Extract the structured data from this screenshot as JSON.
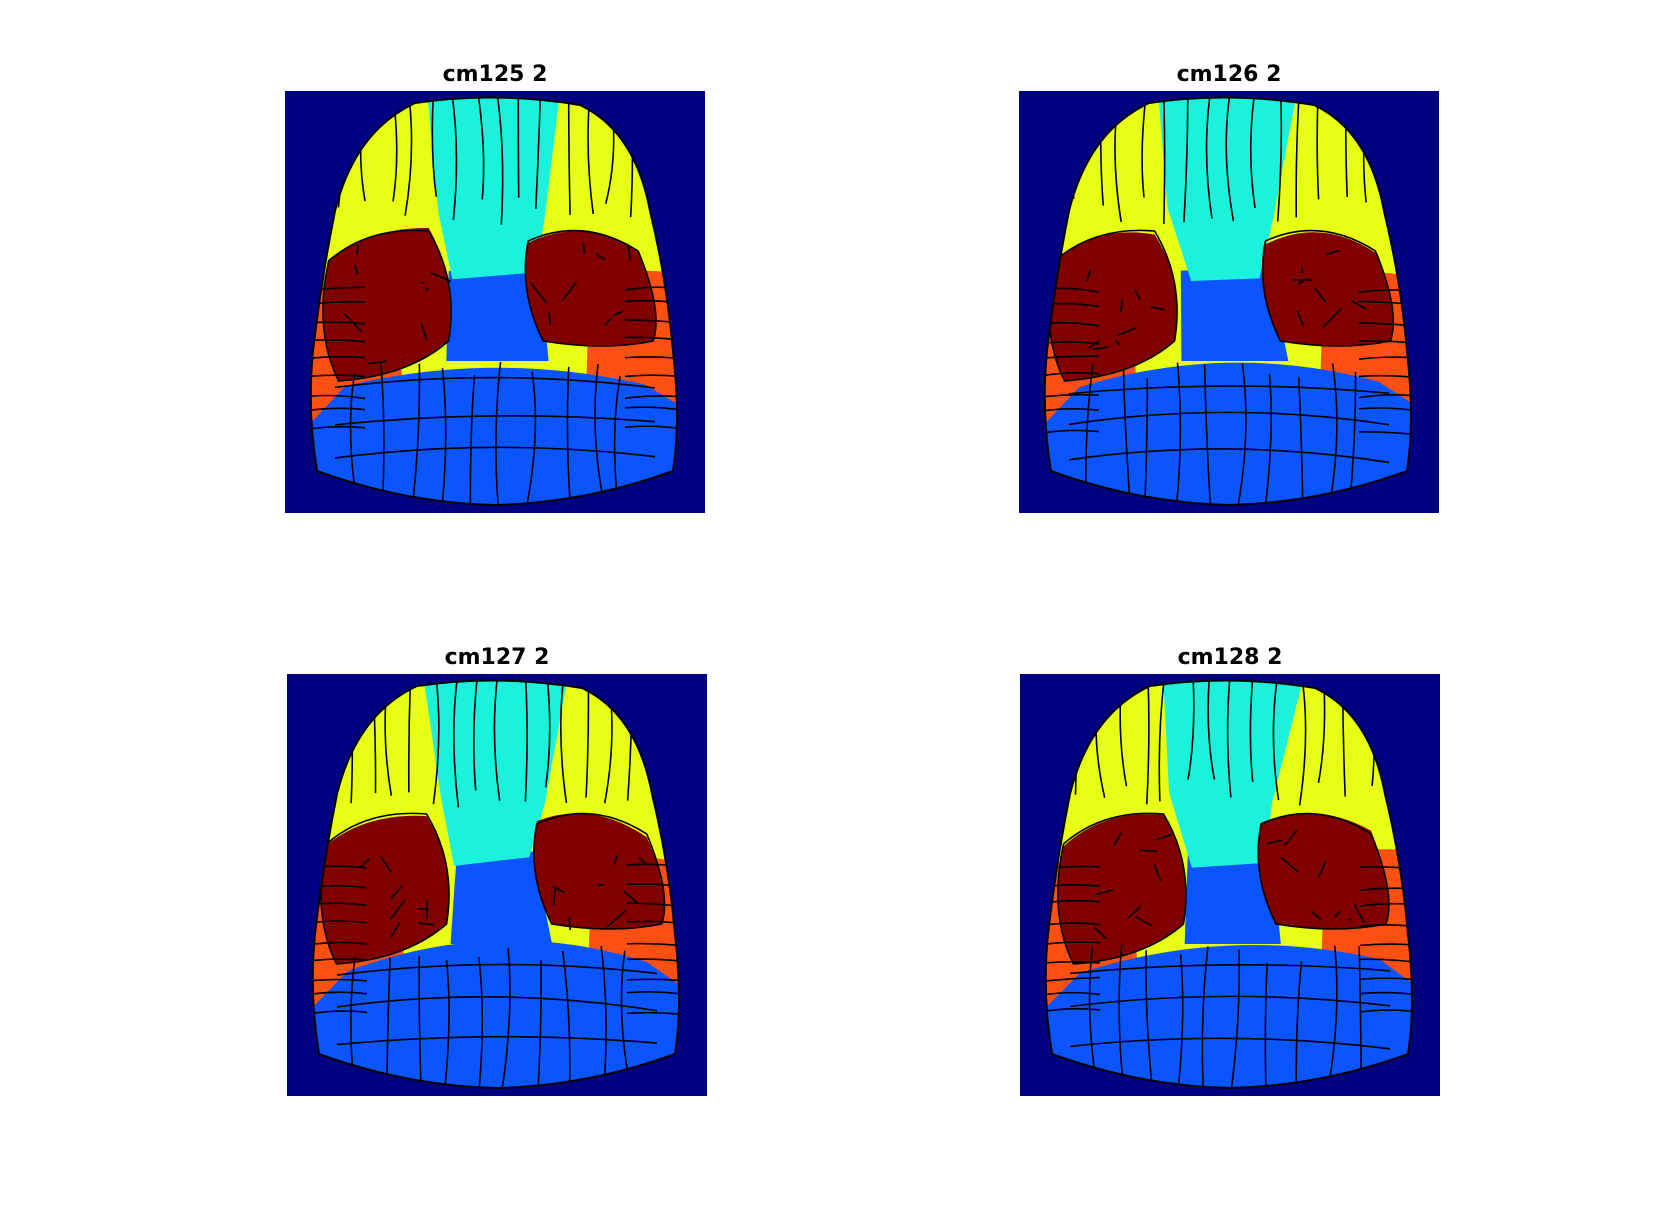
{
  "colors": {
    "background": "#000080",
    "boundary": "#000000",
    "anterior_medial": "#1AF2DC",
    "anterior_lateral": "#E6FF14",
    "sensory_core": "#800000",
    "lateral": "#FF5014",
    "posterior": "#0A55FF"
  },
  "panels": [
    {
      "title": "cm125 2"
    },
    {
      "title": "cm126 2"
    },
    {
      "title": "cm127 2"
    },
    {
      "title": "cm128 2"
    }
  ]
}
